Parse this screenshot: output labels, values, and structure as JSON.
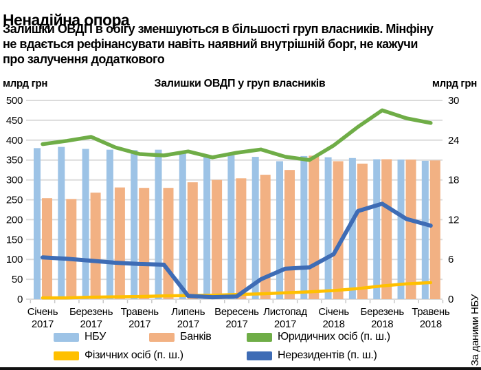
{
  "header": {
    "title": "Ненадійна опора",
    "subtitle_lines": [
      "Залишки ОВДП в обігу зменшуються в більшості груп власників. Мінфіну",
      "не вдається рефінансувати навіть наявний внутрішній борг, не кажучи",
      "про залучення додаткового"
    ]
  },
  "source_note": "За даними НБУ",
  "chart_data": {
    "type": "combo bar+line, dual axis",
    "title": "Залишки ОВДП у груп власників",
    "left_axis": {
      "unit": "млрд грн",
      "min": 0,
      "max": 500,
      "step": 50,
      "tick_labels": [
        "0",
        "50",
        "100",
        "150",
        "200",
        "250",
        "300",
        "350",
        "400",
        "450",
        "500"
      ]
    },
    "right_axis": {
      "unit": "млрд грн",
      "min": 0,
      "max": 30,
      "step": 6,
      "tick_labels": [
        "0",
        "6",
        "12",
        "18",
        "24",
        "30"
      ]
    },
    "grid": "horizontal gridlines every 50 (left scale)",
    "x_tick_labels": [
      {
        "position": 0,
        "month": "Січень",
        "year": "2017"
      },
      {
        "position": 2,
        "month": "Березень",
        "year": "2017"
      },
      {
        "position": 4,
        "month": "Травень",
        "year": "2017"
      },
      {
        "position": 6,
        "month": "Липень",
        "year": "2017"
      },
      {
        "position": 8,
        "month": "Вересень",
        "year": "2017"
      },
      {
        "position": 10,
        "month": "Листопад",
        "year": "2017"
      },
      {
        "position": 12,
        "month": "Січень",
        "year": "2018"
      },
      {
        "position": 14,
        "month": "Березень",
        "year": "2018"
      },
      {
        "position": 16,
        "month": "Травень",
        "year": "2018"
      }
    ],
    "series": [
      {
        "name": "НБУ",
        "type": "bar",
        "axis": "left",
        "color": "#9DC3E6",
        "values": [
          380,
          383,
          378,
          376,
          375,
          376,
          370,
          361,
          362,
          358,
          347,
          360,
          357,
          355,
          352,
          351,
          348
        ]
      },
      {
        "name": "Банків",
        "type": "bar",
        "axis": "left",
        "color": "#F2B183",
        "values": [
          254,
          252,
          268,
          281,
          280,
          280,
          294,
          300,
          304,
          313,
          325,
          361,
          347,
          341,
          352,
          351,
          349
        ]
      },
      {
        "name": "Юридичних осіб (п. ш.)",
        "type": "line",
        "axis": "right",
        "color": "#6FAD47",
        "values": [
          23.4,
          23.9,
          24.5,
          22.9,
          21.9,
          21.7,
          22.3,
          21.4,
          22.1,
          22.6,
          21.5,
          21.0,
          23.2,
          26.0,
          28.5,
          27.3,
          26.6
        ]
      },
      {
        "name": "Фізичних осіб (п. ш.)",
        "type": "line",
        "axis": "right",
        "color": "#FFC000",
        "values": [
          0.2,
          0.2,
          0.3,
          0.35,
          0.4,
          0.5,
          0.55,
          0.6,
          0.7,
          0.8,
          0.95,
          1.1,
          1.3,
          1.6,
          2.0,
          2.3,
          2.5
        ]
      },
      {
        "name": "Нерезидентів (п. ш.)",
        "type": "line",
        "axis": "right",
        "color": "#3E6CB5",
        "values": [
          6.3,
          6.1,
          5.8,
          5.5,
          5.3,
          5.2,
          0.5,
          0.3,
          0.4,
          3.0,
          4.6,
          4.8,
          6.8,
          13.3,
          14.4,
          12.1,
          11.1
        ]
      }
    ],
    "legend_rows": [
      [
        0,
        1,
        2
      ],
      [
        3,
        4
      ]
    ],
    "legend_position": "bottom"
  }
}
